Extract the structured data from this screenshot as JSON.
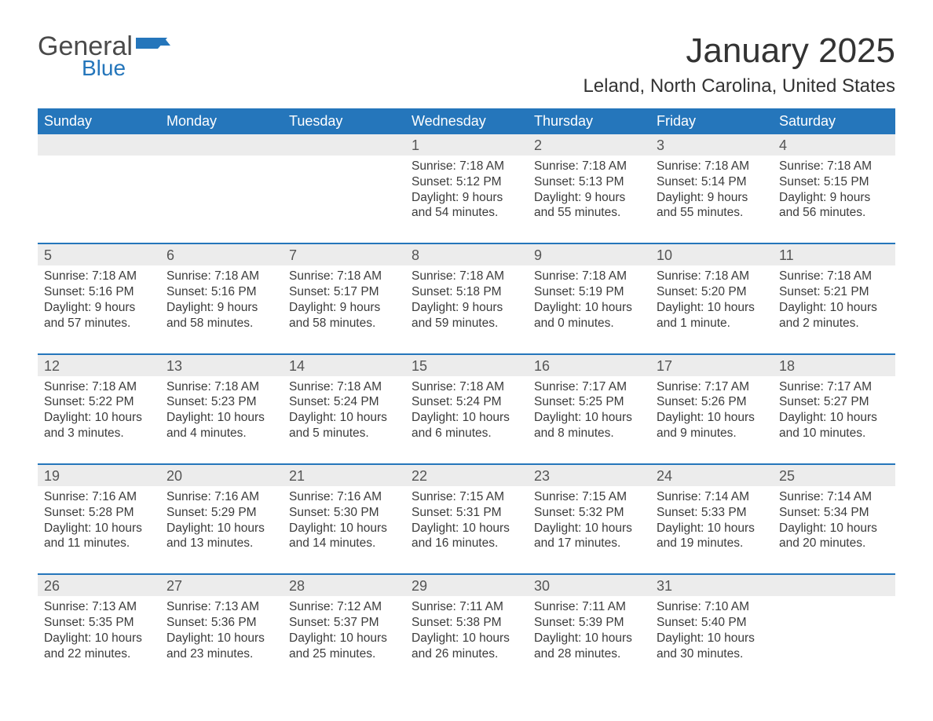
{
  "logo": {
    "word1": "General",
    "word2": "Blue",
    "flag_color": "#2576bb"
  },
  "title": "January 2025",
  "location": "Leland, North Carolina, United States",
  "colors": {
    "header_bg": "#2576bb",
    "header_text": "#ffffff",
    "daynum_bg": "#ececec",
    "rule": "#2576bb",
    "body_text": "#3b3b3b"
  },
  "day_headers": [
    "Sunday",
    "Monday",
    "Tuesday",
    "Wednesday",
    "Thursday",
    "Friday",
    "Saturday"
  ],
  "weeks": [
    [
      null,
      null,
      null,
      {
        "n": "1",
        "sunrise": "7:18 AM",
        "sunset": "5:12 PM",
        "daylight": "9 hours and 54 minutes."
      },
      {
        "n": "2",
        "sunrise": "7:18 AM",
        "sunset": "5:13 PM",
        "daylight": "9 hours and 55 minutes."
      },
      {
        "n": "3",
        "sunrise": "7:18 AM",
        "sunset": "5:14 PM",
        "daylight": "9 hours and 55 minutes."
      },
      {
        "n": "4",
        "sunrise": "7:18 AM",
        "sunset": "5:15 PM",
        "daylight": "9 hours and 56 minutes."
      }
    ],
    [
      {
        "n": "5",
        "sunrise": "7:18 AM",
        "sunset": "5:16 PM",
        "daylight": "9 hours and 57 minutes."
      },
      {
        "n": "6",
        "sunrise": "7:18 AM",
        "sunset": "5:16 PM",
        "daylight": "9 hours and 58 minutes."
      },
      {
        "n": "7",
        "sunrise": "7:18 AM",
        "sunset": "5:17 PM",
        "daylight": "9 hours and 58 minutes."
      },
      {
        "n": "8",
        "sunrise": "7:18 AM",
        "sunset": "5:18 PM",
        "daylight": "9 hours and 59 minutes."
      },
      {
        "n": "9",
        "sunrise": "7:18 AM",
        "sunset": "5:19 PM",
        "daylight": "10 hours and 0 minutes."
      },
      {
        "n": "10",
        "sunrise": "7:18 AM",
        "sunset": "5:20 PM",
        "daylight": "10 hours and 1 minute."
      },
      {
        "n": "11",
        "sunrise": "7:18 AM",
        "sunset": "5:21 PM",
        "daylight": "10 hours and 2 minutes."
      }
    ],
    [
      {
        "n": "12",
        "sunrise": "7:18 AM",
        "sunset": "5:22 PM",
        "daylight": "10 hours and 3 minutes."
      },
      {
        "n": "13",
        "sunrise": "7:18 AM",
        "sunset": "5:23 PM",
        "daylight": "10 hours and 4 minutes."
      },
      {
        "n": "14",
        "sunrise": "7:18 AM",
        "sunset": "5:24 PM",
        "daylight": "10 hours and 5 minutes."
      },
      {
        "n": "15",
        "sunrise": "7:18 AM",
        "sunset": "5:24 PM",
        "daylight": "10 hours and 6 minutes."
      },
      {
        "n": "16",
        "sunrise": "7:17 AM",
        "sunset": "5:25 PM",
        "daylight": "10 hours and 8 minutes."
      },
      {
        "n": "17",
        "sunrise": "7:17 AM",
        "sunset": "5:26 PM",
        "daylight": "10 hours and 9 minutes."
      },
      {
        "n": "18",
        "sunrise": "7:17 AM",
        "sunset": "5:27 PM",
        "daylight": "10 hours and 10 minutes."
      }
    ],
    [
      {
        "n": "19",
        "sunrise": "7:16 AM",
        "sunset": "5:28 PM",
        "daylight": "10 hours and 11 minutes."
      },
      {
        "n": "20",
        "sunrise": "7:16 AM",
        "sunset": "5:29 PM",
        "daylight": "10 hours and 13 minutes."
      },
      {
        "n": "21",
        "sunrise": "7:16 AM",
        "sunset": "5:30 PM",
        "daylight": "10 hours and 14 minutes."
      },
      {
        "n": "22",
        "sunrise": "7:15 AM",
        "sunset": "5:31 PM",
        "daylight": "10 hours and 16 minutes."
      },
      {
        "n": "23",
        "sunrise": "7:15 AM",
        "sunset": "5:32 PM",
        "daylight": "10 hours and 17 minutes."
      },
      {
        "n": "24",
        "sunrise": "7:14 AM",
        "sunset": "5:33 PM",
        "daylight": "10 hours and 19 minutes."
      },
      {
        "n": "25",
        "sunrise": "7:14 AM",
        "sunset": "5:34 PM",
        "daylight": "10 hours and 20 minutes."
      }
    ],
    [
      {
        "n": "26",
        "sunrise": "7:13 AM",
        "sunset": "5:35 PM",
        "daylight": "10 hours and 22 minutes."
      },
      {
        "n": "27",
        "sunrise": "7:13 AM",
        "sunset": "5:36 PM",
        "daylight": "10 hours and 23 minutes."
      },
      {
        "n": "28",
        "sunrise": "7:12 AM",
        "sunset": "5:37 PM",
        "daylight": "10 hours and 25 minutes."
      },
      {
        "n": "29",
        "sunrise": "7:11 AM",
        "sunset": "5:38 PM",
        "daylight": "10 hours and 26 minutes."
      },
      {
        "n": "30",
        "sunrise": "7:11 AM",
        "sunset": "5:39 PM",
        "daylight": "10 hours and 28 minutes."
      },
      {
        "n": "31",
        "sunrise": "7:10 AM",
        "sunset": "5:40 PM",
        "daylight": "10 hours and 30 minutes."
      },
      null
    ]
  ],
  "labels": {
    "sunrise": "Sunrise: ",
    "sunset": "Sunset: ",
    "daylight": "Daylight: "
  }
}
